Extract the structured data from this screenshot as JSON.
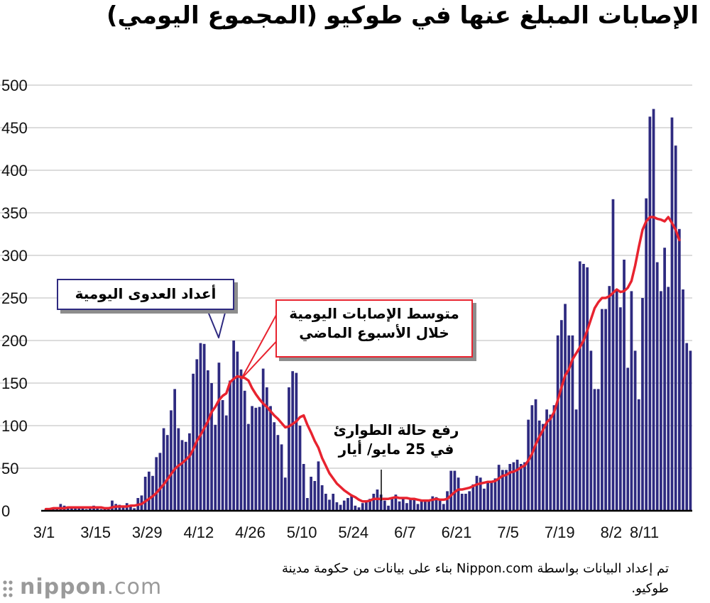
{
  "title": "الإصابات المبلغ عنها في طوكيو (المجموع اليومي)",
  "colors": {
    "bar": "#2e2a80",
    "line": "#e8232f",
    "grid": "#c8c8c8",
    "shadow": "#8d8d8d"
  },
  "callouts": {
    "bars": "أعداد العدوى اليومية",
    "line_1": "متوسط الإصابات اليومية",
    "line_2": "خلال الأسبوع الماضي",
    "emergency_1": "رفع حالة الطوارئ",
    "emergency_2": "في 25 مايو/ أيار"
  },
  "source_note": "تم إعداد البيانات بواسطة Nippon.com بناء على بيانات من حكومة مدينة طوكيو.",
  "logo": {
    "brand": "nippon",
    "domain": ".com"
  },
  "chart_data": {
    "type": "bar",
    "title": "الإصابات المبلغ عنها في طوكيو (المجموع اليومي)",
    "xlabel": "",
    "ylabel": "",
    "ylim": [
      0,
      500
    ],
    "yticks": [
      0,
      50,
      100,
      150,
      200,
      250,
      300,
      350,
      400,
      450,
      500
    ],
    "grid": true,
    "x_tick_labels": [
      "3/1",
      "3/15",
      "3/29",
      "4/12",
      "4/26",
      "5/10",
      "5/24",
      "6/7",
      "6/21",
      "7/5",
      "7/19",
      "8/2",
      "8/11"
    ],
    "x_tick_days": [
      0,
      14,
      28,
      42,
      56,
      70,
      84,
      98,
      112,
      126,
      140,
      154,
      163
    ],
    "start_date": "3/1",
    "series": [
      {
        "name": "أعداد العدوى اليومية",
        "kind": "bar",
        "values": [
          2,
          3,
          4,
          3,
          8,
          6,
          4,
          3,
          4,
          3,
          5,
          2,
          4,
          6,
          3,
          2,
          3,
          3,
          12,
          8,
          7,
          5,
          9,
          7,
          3,
          15,
          18,
          40,
          46,
          41,
          63,
          68,
          97,
          89,
          118,
          143,
          97,
          83,
          81,
          91,
          161,
          178,
          197,
          196,
          165,
          150,
          101,
          174,
          130,
          112,
          153,
          200,
          187,
          166,
          141,
          102,
          123,
          121,
          122,
          167,
          145,
          123,
          104,
          89,
          78,
          39,
          145,
          164,
          162,
          100,
          55,
          15,
          40,
          35,
          58,
          30,
          20,
          13,
          20,
          10,
          7,
          12,
          15,
          18,
          6,
          4,
          9,
          11,
          14,
          20,
          25,
          19,
          12,
          6,
          14,
          19,
          11,
          15,
          9,
          13,
          15,
          8,
          12,
          13,
          11,
          17,
          16,
          13,
          8,
          23,
          47,
          47,
          39,
          20,
          20,
          23,
          31,
          41,
          39,
          26,
          35,
          35,
          38,
          54,
          48,
          48,
          55,
          57,
          60,
          55,
          57,
          107,
          124,
          131,
          106,
          102,
          119,
          113,
          124,
          206,
          224,
          243,
          206,
          206,
          119,
          293,
          290,
          286,
          188,
          143,
          143,
          237,
          237,
          264,
          366,
          260,
          239,
          295,
          168,
          258,
          188,
          131,
          250,
          367,
          463,
          472,
          292,
          258,
          309,
          263,
          462,
          429,
          331,
          260,
          197,
          188
        ]
      },
      {
        "name": "متوسط الإصابات اليومية خلال الأسبوع الماضي",
        "kind": "line",
        "values": [
          2,
          2,
          3,
          3,
          3,
          3,
          4,
          4,
          4,
          4,
          4,
          4,
          4,
          4,
          4,
          4,
          3,
          3,
          4,
          5,
          5,
          5,
          5,
          6,
          6,
          7,
          8,
          11,
          14,
          17,
          21,
          26,
          31,
          37,
          43,
          49,
          53,
          56,
          60,
          64,
          72,
          82,
          89,
          97,
          105,
          116,
          122,
          130,
          135,
          138,
          151,
          155,
          158,
          157,
          156,
          153,
          144,
          137,
          131,
          126,
          122,
          117,
          112,
          108,
          103,
          98,
          99,
          102,
          105,
          110,
          112,
          101,
          92,
          82,
          74,
          62,
          53,
          44,
          38,
          32,
          28,
          24,
          21,
          18,
          16,
          13,
          11,
          11,
          12,
          14,
          14,
          14,
          14,
          14,
          15,
          16,
          15,
          15,
          15,
          14,
          14,
          13,
          12,
          12,
          12,
          13,
          14,
          13,
          13,
          14,
          18,
          22,
          25,
          25,
          26,
          27,
          29,
          31,
          32,
          33,
          34,
          34,
          35,
          38,
          41,
          42,
          45,
          46,
          48,
          51,
          53,
          59,
          67,
          78,
          87,
          95,
          104,
          108,
          116,
          130,
          145,
          159,
          166,
          178,
          185,
          192,
          200,
          212,
          225,
          238,
          245,
          250,
          250,
          252,
          256,
          260,
          257,
          258,
          262,
          270,
          288,
          310,
          330,
          340,
          345,
          345,
          343,
          342,
          340,
          345,
          338,
          330,
          318
        ]
      }
    ]
  }
}
